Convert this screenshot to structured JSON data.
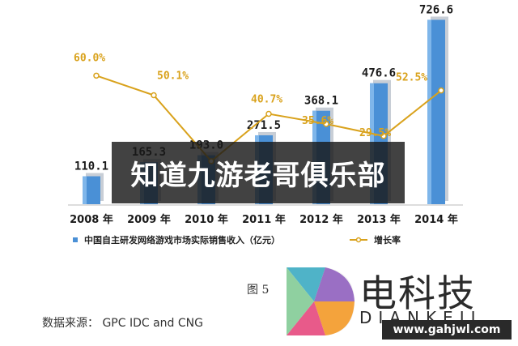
{
  "chart_data": {
    "type": "bar",
    "categories": [
      "2008 年",
      "2009 年",
      "2010 年",
      "2011 年",
      "2012 年",
      "2013 年",
      "2014 年"
    ],
    "series": [
      {
        "name": "中国自主研发网络游戏市场实际销售收入（亿元）",
        "type": "bar",
        "values": [
          110.1,
          165.3,
          193.0,
          271.5,
          368.1,
          476.6,
          726.6
        ],
        "labels": [
          "110.1",
          "165.3",
          "193.0",
          "271.5",
          "368.1",
          "476.6",
          "726.6"
        ],
        "color": "#4a90d6"
      },
      {
        "name": "增长率",
        "type": "line",
        "values": [
          60.0,
          50.1,
          16.8,
          40.7,
          35.6,
          29.5,
          52.5
        ],
        "labels": [
          "60.0%",
          "50.1%",
          "",
          "40.7%",
          "35.6%",
          "29.5%",
          "52.5%"
        ],
        "color": "#d9a21c"
      }
    ],
    "ylim": [
      0,
      760
    ],
    "rate_ylim": [
      0,
      90
    ],
    "legend": "bottom",
    "grid": false
  },
  "overlay_banner": "知道九游老哥俱乐部",
  "figure_label": "图 5",
  "source_note": "数据来源： GPC IDC and CNG",
  "watermark": {
    "brand": "电科技",
    "sub": "DIANKEJI",
    "url": "www.gahjwl.com"
  }
}
